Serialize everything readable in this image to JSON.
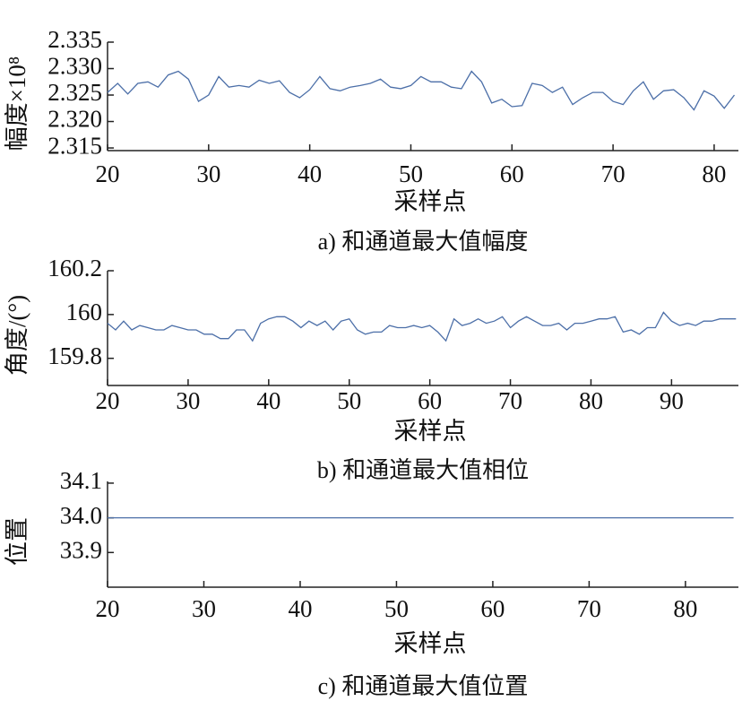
{
  "chart_data": [
    {
      "type": "line",
      "caption": "a) 和通道最大值幅度",
      "xlabel": "采样点",
      "ylabel": "幅度×10⁸",
      "color": "#4c6fa8",
      "x": [
        20,
        21,
        22,
        23,
        24,
        25,
        26,
        27,
        28,
        29,
        30,
        31,
        32,
        33,
        34,
        35,
        36,
        37,
        38,
        39,
        40,
        41,
        42,
        43,
        44,
        45,
        46,
        47,
        48,
        49,
        50,
        51,
        52,
        53,
        54,
        55,
        56,
        57,
        58,
        59,
        60,
        61,
        62,
        63,
        64,
        65,
        66,
        67,
        68,
        69,
        70,
        71,
        72,
        73,
        74,
        75,
        76,
        77,
        78,
        79,
        80,
        81,
        82
      ],
      "values": [
        2.3255,
        2.3272,
        2.3252,
        2.3272,
        2.3275,
        2.3265,
        2.3288,
        2.3295,
        2.328,
        2.3238,
        2.325,
        2.3285,
        2.3265,
        2.3268,
        2.3265,
        2.3278,
        2.3272,
        2.3277,
        2.3255,
        2.3245,
        2.326,
        2.3285,
        2.3262,
        2.3258,
        2.3265,
        2.3268,
        2.3272,
        2.328,
        2.3265,
        2.3262,
        2.3268,
        2.3285,
        2.3275,
        2.3275,
        2.3265,
        2.3262,
        2.3295,
        2.3275,
        2.3235,
        2.3242,
        2.3228,
        2.323,
        2.3272,
        2.3268,
        2.3255,
        2.3265,
        2.3232,
        2.3245,
        2.3255,
        2.3255,
        2.3238,
        2.3232,
        2.3258,
        2.3275,
        2.3242,
        2.3258,
        2.326,
        2.3245,
        2.3222,
        2.3258,
        2.3248,
        2.3225,
        2.325
      ],
      "xlim": [
        20,
        82.4
      ],
      "xticks": [
        20,
        30,
        40,
        50,
        60,
        70,
        80
      ],
      "ylim": [
        2.3145,
        2.335
      ],
      "yticks": [
        2.335,
        {
          "value": 2.33,
          "label": "2.330"
        },
        2.325,
        {
          "value": 2.32,
          "label": "2.320"
        },
        2.315
      ]
    },
    {
      "type": "line",
      "caption": "b) 和通道最大值相位",
      "xlabel": "采样点",
      "ylabel": "角度/(°)",
      "color": "#4c6fa8",
      "x": [
        20,
        21,
        22,
        23,
        24,
        25,
        26,
        27,
        28,
        29,
        30,
        31,
        32,
        33,
        34,
        35,
        36,
        37,
        38,
        39,
        40,
        41,
        42,
        43,
        44,
        45,
        46,
        47,
        48,
        49,
        50,
        51,
        52,
        53,
        54,
        55,
        56,
        57,
        58,
        59,
        60,
        61,
        62,
        63,
        64,
        65,
        66,
        67,
        68,
        69,
        70,
        71,
        72,
        73,
        74,
        75,
        76,
        77,
        78,
        79,
        80,
        81,
        82,
        83,
        84,
        85,
        86,
        87,
        88,
        89,
        90,
        91,
        92,
        93,
        94,
        95,
        96,
        97,
        98
      ],
      "values": [
        159.96,
        159.93,
        159.97,
        159.93,
        159.95,
        159.94,
        159.93,
        159.93,
        159.95,
        159.94,
        159.93,
        159.93,
        159.91,
        159.91,
        159.89,
        159.89,
        159.93,
        159.93,
        159.88,
        159.96,
        159.98,
        159.99,
        159.99,
        159.97,
        159.94,
        159.97,
        159.95,
        159.97,
        159.93,
        159.97,
        159.98,
        159.93,
        159.91,
        159.92,
        159.92,
        159.95,
        159.94,
        159.94,
        159.95,
        159.94,
        159.95,
        159.92,
        159.88,
        159.98,
        159.95,
        159.96,
        159.98,
        159.96,
        159.97,
        159.99,
        159.94,
        159.97,
        159.99,
        159.97,
        159.95,
        159.95,
        159.96,
        159.93,
        159.96,
        159.96,
        159.97,
        159.98,
        159.98,
        159.99,
        159.92,
        159.93,
        159.91,
        159.94,
        159.94,
        160.01,
        159.97,
        159.95,
        159.96,
        159.95,
        159.97,
        159.97,
        159.98,
        159.98,
        159.98
      ],
      "xlim": [
        20,
        98.3
      ],
      "xticks": [
        20,
        30,
        40,
        50,
        60,
        70,
        80,
        90
      ],
      "ylim": [
        159.676,
        160.2
      ],
      "yticks": [
        160.2,
        160,
        159.8
      ]
    },
    {
      "type": "line",
      "caption": "c) 和通道最大值位置",
      "xlabel": "采样点",
      "ylabel": "位置",
      "color": "#4c6fa8",
      "x": [
        20,
        21,
        22,
        23,
        24,
        25,
        26,
        27,
        28,
        29,
        30,
        31,
        32,
        33,
        34,
        35,
        36,
        37,
        38,
        39,
        40,
        41,
        42,
        43,
        44,
        45,
        46,
        47,
        48,
        49,
        50,
        51,
        52,
        53,
        54,
        55,
        56,
        57,
        58,
        59,
        60,
        61,
        62,
        63,
        64,
        65,
        66,
        67,
        68,
        69,
        70,
        71,
        72,
        73,
        74,
        75,
        76,
        77,
        78,
        79,
        80,
        81,
        82,
        83,
        84,
        85
      ],
      "values": [
        34,
        34,
        34,
        34,
        34,
        34,
        34,
        34,
        34,
        34,
        34,
        34,
        34,
        34,
        34,
        34,
        34,
        34,
        34,
        34,
        34,
        34,
        34,
        34,
        34,
        34,
        34,
        34,
        34,
        34,
        34,
        34,
        34,
        34,
        34,
        34,
        34,
        34,
        34,
        34,
        34,
        34,
        34,
        34,
        34,
        34,
        34,
        34,
        34,
        34,
        34,
        34,
        34,
        34,
        34,
        34,
        34,
        34,
        34,
        34,
        34,
        34,
        34,
        34,
        34,
        34
      ],
      "xlim": [
        20,
        85.5
      ],
      "xticks": [
        20,
        30,
        40,
        50,
        60,
        70,
        80
      ],
      "ylim": [
        33.8,
        34.105
      ],
      "yticks": [
        34.1,
        {
          "value": 34,
          "label": "34.0"
        },
        33.9
      ]
    }
  ]
}
